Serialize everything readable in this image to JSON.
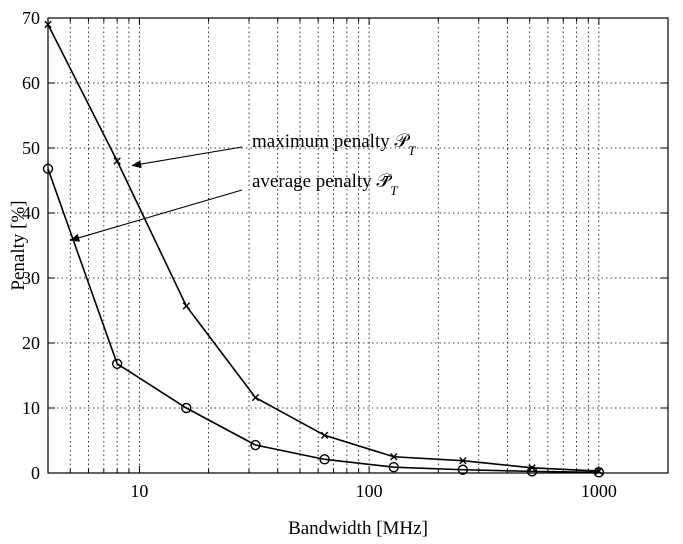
{
  "chart_data": {
    "type": "line",
    "xlabel": "Bandwidth [MHz]",
    "ylabel": "Penalty [%]",
    "xscale": "log",
    "xlim": [
      4,
      2000
    ],
    "ylim": [
      0,
      70
    ],
    "xticks": [
      10,
      100,
      1000
    ],
    "xtick_labels": [
      "10",
      "100",
      "1000"
    ],
    "yticks": [
      0,
      10,
      20,
      30,
      40,
      50,
      60,
      70
    ],
    "ytick_labels": [
      "0",
      "10",
      "20",
      "30",
      "40",
      "50",
      "60",
      "70"
    ],
    "grid": true,
    "x": [
      4,
      8,
      16,
      32,
      64,
      128,
      256,
      512,
      1000
    ],
    "series": [
      {
        "name": "maximum penalty 𝒫",
        "marker": "x",
        "values": [
          69,
          48,
          25.7,
          11.6,
          5.8,
          2.5,
          1.9,
          0.8,
          0.3
        ]
      },
      {
        "name": "average penalty 𝒫̄",
        "marker": "o",
        "values": [
          46.8,
          16.8,
          10.0,
          4.3,
          2.1,
          0.9,
          0.5,
          0.25,
          0.1
        ]
      }
    ],
    "annotations": [
      {
        "label": "maximum penalty 𝒫",
        "subscript": "T",
        "series_index": 0,
        "arrow_to": [
          9.3,
          47.3
        ]
      },
      {
        "label": "average penalty 𝒫̄",
        "subscript": "T",
        "series_index": 1,
        "arrow_to": [
          5.0,
          35.8
        ]
      }
    ],
    "colors": {
      "line": "#000000",
      "frame": "#000000",
      "background": "#ffffff"
    }
  }
}
